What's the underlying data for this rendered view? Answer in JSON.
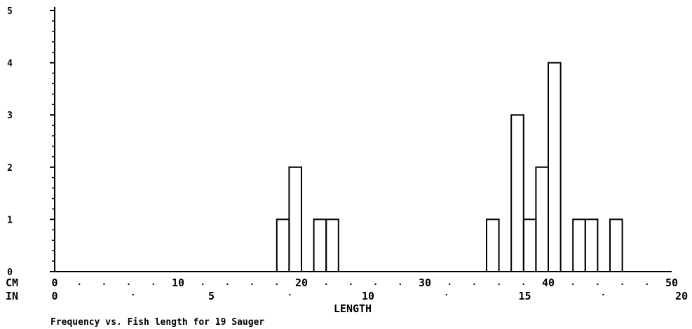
{
  "chart_data": {
    "type": "bar",
    "style": "histogram-step-outline",
    "bin_width_cm": 1,
    "bins": [
      {
        "x_start_cm": 18,
        "x_end_cm": 19,
        "count": 1
      },
      {
        "x_start_cm": 19,
        "x_end_cm": 20,
        "count": 2
      },
      {
        "x_start_cm": 21,
        "x_end_cm": 22,
        "count": 1
      },
      {
        "x_start_cm": 22,
        "x_end_cm": 23,
        "count": 1
      },
      {
        "x_start_cm": 35,
        "x_end_cm": 36,
        "count": 1
      },
      {
        "x_start_cm": 37,
        "x_end_cm": 38,
        "count": 3
      },
      {
        "x_start_cm": 38,
        "x_end_cm": 39,
        "count": 1
      },
      {
        "x_start_cm": 39,
        "x_end_cm": 40,
        "count": 2
      },
      {
        "x_start_cm": 40,
        "x_end_cm": 41,
        "count": 4
      },
      {
        "x_start_cm": 42,
        "x_end_cm": 43,
        "count": 1
      },
      {
        "x_start_cm": 43,
        "x_end_cm": 44,
        "count": 1
      },
      {
        "x_start_cm": 45,
        "x_end_cm": 46,
        "count": 1
      }
    ],
    "xlim_cm": [
      0,
      50
    ],
    "ylim": [
      0,
      5
    ],
    "yticks": [
      "0",
      "1",
      "2",
      "3",
      "4",
      "5"
    ],
    "x_axis_cm": {
      "unit_label": "CM",
      "tick_labels": [
        "0",
        "10",
        "20",
        "30",
        "40",
        "50"
      ],
      "tick_values": [
        0,
        10,
        20,
        30,
        40,
        50
      ]
    },
    "x_axis_in": {
      "unit_label": "IN",
      "tick_labels": [
        "0",
        "5",
        "10",
        "15",
        "20"
      ],
      "tick_values": [
        0,
        5,
        10,
        15,
        20
      ]
    },
    "xlabel": "LENGTH",
    "caption": "Frequency vs. Fish length for 19 Sauger",
    "grid": false,
    "legend": "none"
  }
}
